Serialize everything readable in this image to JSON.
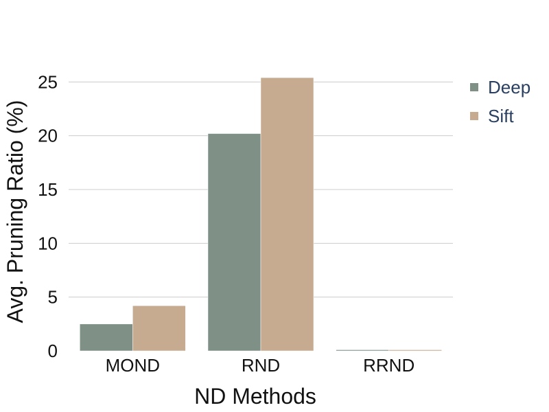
{
  "chart_data": {
    "type": "bar",
    "categories": [
      "MOND",
      "RND",
      "RRND"
    ],
    "series": [
      {
        "name": "Deep",
        "values": [
          2.5,
          20.2,
          0.1
        ],
        "color": "#7f9187"
      },
      {
        "name": "Sift",
        "values": [
          4.2,
          25.4,
          0.1
        ],
        "color": "#c7ab91"
      }
    ],
    "xlabel": "ND Methods",
    "ylabel": "Avg. Pruning Ratio (%)",
    "ylim": [
      0,
      27
    ],
    "yticks": [
      "0",
      "5",
      "10",
      "15",
      "20",
      "25"
    ],
    "grid": true,
    "legend_position": "top-right"
  }
}
